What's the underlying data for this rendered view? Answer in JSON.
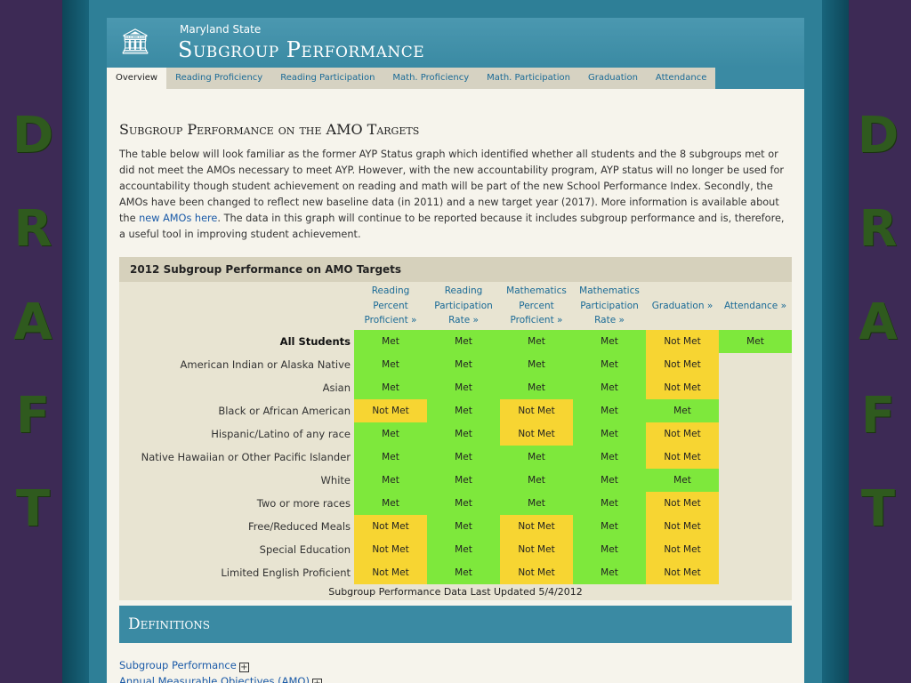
{
  "draft": [
    "D",
    "R",
    "A",
    "F",
    "T"
  ],
  "header": {
    "small": "Maryland State",
    "title": "Subgroup Performance"
  },
  "tabs": [
    {
      "label": "Overview",
      "active": true
    },
    {
      "label": "Reading Proficiency"
    },
    {
      "label": "Reading Participation"
    },
    {
      "label": "Math. Proficiency"
    },
    {
      "label": "Math. Participation"
    },
    {
      "label": "Graduation"
    },
    {
      "label": "Attendance"
    }
  ],
  "section_title": "Subgroup Performance on the AMO Targets",
  "intro": {
    "before_link": "The table below will look familiar as the former AYP Status graph which identified whether all students and the 8 subgroups met or did not meet the AMOs necessary to meet AYP. However, with the new accountability program, AYP status will no longer be used for accountability though student achievement on reading and math will be part of the new School Performance Index. Secondly, the AMOs have been changed to reflect new baseline data (in 2011) and a new target year (2017). More information is available about the ",
    "link": "new AMOs here",
    "after_link": ". The data in this graph will continue to be reported because it includes subgroup performance and is, therefore, a useful tool in improving student achievement."
  },
  "table": {
    "title": "2012 Subgroup Performance on AMO Targets",
    "columns": [
      "Reading Percent Proficient »",
      "Reading Participation Rate »",
      "Mathematics Percent Proficient »",
      "Mathematics Participation Rate »",
      "Graduation »",
      "Attendance »"
    ],
    "rows": [
      {
        "label": "All Students",
        "bold": true,
        "cells": [
          "Met",
          "Met",
          "Met",
          "Met",
          "Not Met",
          "Met"
        ]
      },
      {
        "label": "American Indian or Alaska Native",
        "cells": [
          "Met",
          "Met",
          "Met",
          "Met",
          "Not Met",
          ""
        ]
      },
      {
        "label": "Asian",
        "cells": [
          "Met",
          "Met",
          "Met",
          "Met",
          "Not Met",
          ""
        ]
      },
      {
        "label": "Black or African American",
        "cells": [
          "Not Met",
          "Met",
          "Not Met",
          "Met",
          "Met",
          ""
        ]
      },
      {
        "label": "Hispanic/Latino of any race",
        "cells": [
          "Met",
          "Met",
          "Not Met",
          "Met",
          "Not Met",
          ""
        ]
      },
      {
        "label": "Native Hawaiian or Other Pacific Islander",
        "cells": [
          "Met",
          "Met",
          "Met",
          "Met",
          "Not Met",
          ""
        ]
      },
      {
        "label": "White",
        "cells": [
          "Met",
          "Met",
          "Met",
          "Met",
          "Met",
          ""
        ]
      },
      {
        "label": "Two or more races",
        "cells": [
          "Met",
          "Met",
          "Met",
          "Met",
          "Not Met",
          ""
        ]
      },
      {
        "label": "Free/Reduced Meals",
        "cells": [
          "Not Met",
          "Met",
          "Not Met",
          "Met",
          "Not Met",
          ""
        ]
      },
      {
        "label": "Special Education",
        "cells": [
          "Not Met",
          "Met",
          "Not Met",
          "Met",
          "Not Met",
          ""
        ]
      },
      {
        "label": "Limited English Proficient",
        "cells": [
          "Not Met",
          "Met",
          "Not Met",
          "Met",
          "Not Met",
          ""
        ]
      }
    ],
    "footnote": "Subgroup Performance Data Last Updated 5/4/2012"
  },
  "definitions": {
    "title": "Definitions",
    "items": [
      "Subgroup Performance",
      "Annual Measurable Objectives (AMO)"
    ]
  },
  "colors": {
    "met": "#7ee83c",
    "not_met": "#f7d532",
    "accent": "#3a8aa3"
  }
}
